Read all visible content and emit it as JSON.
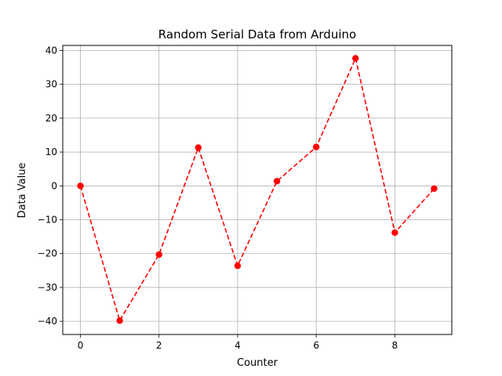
{
  "chart_data": {
    "type": "line",
    "title": "Random Serial Data from Arduino",
    "xlabel": "Counter",
    "ylabel": "Data Value",
    "xlim": [
      -0.45,
      9.45
    ],
    "ylim": [
      -43.9,
      41.5
    ],
    "xticks": [
      0,
      2,
      4,
      6,
      8
    ],
    "yticks": [
      -40,
      -30,
      -20,
      -10,
      0,
      10,
      20,
      30,
      40
    ],
    "xtick_labels": [
      "0",
      "2",
      "4",
      "6",
      "8"
    ],
    "ytick_labels": [
      "−40",
      "−30",
      "−20",
      "−10",
      "0",
      "10",
      "20",
      "30",
      "40"
    ],
    "grid": true,
    "series": [
      {
        "x": [
          0,
          1,
          2,
          3,
          4,
          5,
          6,
          7,
          8,
          9
        ],
        "values": [
          0,
          -39.8,
          -20.3,
          11.3,
          -23.6,
          1.4,
          11.5,
          37.7,
          -13.8,
          -0.8
        ],
        "color": "#ff0000",
        "line_style": "dashed",
        "marker": "circle"
      }
    ]
  }
}
